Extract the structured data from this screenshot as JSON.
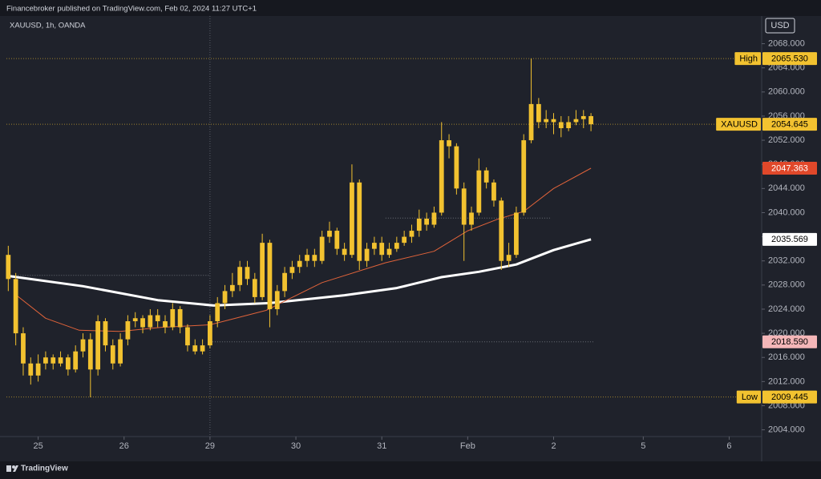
{
  "header": {
    "publisher": "Financebroker published on TradingView.com, Feb 02, 2024 11:27 UTC+1",
    "symbol": "XAUUSD, 1h, OANDA",
    "currency": "USD"
  },
  "footer": {
    "brand": "TradingView"
  },
  "chart_data": {
    "type": "candlestick",
    "color": "#f2c230",
    "x": [
      0,
      2,
      4,
      6,
      8,
      10,
      12,
      14,
      16,
      18,
      20,
      22,
      24,
      26,
      28,
      30,
      32,
      34,
      36,
      38,
      40,
      42,
      44,
      46,
      48,
      50,
      52,
      54,
      56,
      58,
      60,
      62,
      64,
      66,
      68,
      70,
      72,
      74,
      76,
      78,
      80,
      82,
      84,
      86,
      88,
      90,
      92,
      94,
      96,
      98,
      100,
      102,
      104,
      106,
      108,
      110,
      112,
      114,
      116,
      118,
      120,
      122,
      124,
      126,
      128,
      130,
      132,
      134,
      136,
      138,
      140,
      142,
      144,
      146,
      148,
      150,
      152,
      154,
      156
    ],
    "open": [
      2033,
      2029,
      2020,
      2015,
      2013,
      2015,
      2016,
      2015,
      2016,
      2014,
      2017,
      2019,
      2014,
      2022,
      2018,
      2015,
      2019,
      2022,
      2022.5,
      2021,
      2023,
      2022,
      2021,
      2024,
      2021,
      2018,
      2017,
      2018,
      2022,
      2025,
      2027,
      2028,
      2031,
      2029,
      2026,
      2035,
      2024,
      2027,
      2030,
      2031,
      2032,
      2033,
      2032,
      2036,
      2037,
      2034,
      2033,
      2045,
      2032,
      2034,
      2035,
      2033,
      2034,
      2035,
      2036,
      2037,
      2039,
      2038,
      2040,
      2052,
      2051,
      2044,
      2038,
      2040,
      2047,
      2045,
      2042,
      2032,
      2033,
      2040,
      2052,
      2058,
      2055,
      2055.5,
      2055,
      2054,
      2055,
      2055.5,
      2056
    ],
    "high": [
      2034.5,
      2030,
      2021,
      2016,
      2016.5,
      2017,
      2016.5,
      2017,
      2016.5,
      2018,
      2020,
      2020,
      2023,
      2022.5,
      2019,
      2020,
      2023,
      2023.5,
      2023,
      2024,
      2024,
      2023,
      2025,
      2024.5,
      2021.5,
      2019,
      2019,
      2023,
      2026,
      2028,
      2030,
      2032,
      2032,
      2030,
      2036.5,
      2035.5,
      2028,
      2031,
      2032,
      2033,
      2034,
      2034,
      2037,
      2038.5,
      2037.5,
      2035,
      2048,
      2045.5,
      2035,
      2036,
      2036,
      2035,
      2036,
      2037,
      2038,
      2040.5,
      2040,
      2041,
      2055,
      2053,
      2051.5,
      2045,
      2041,
      2049,
      2047.5,
      2045.5,
      2042.5,
      2035,
      2041,
      2053,
      2065.53,
      2059,
      2057,
      2056.5,
      2056,
      2056,
      2057,
      2057,
      2056.5
    ],
    "low": [
      2027,
      2018,
      2013,
      2011.5,
      2012,
      2014,
      2014,
      2014.5,
      2013,
      2013.5,
      2016,
      2009.4,
      2013,
      2017,
      2014,
      2014.5,
      2018,
      2021,
      2020,
      2020.5,
      2021,
      2020,
      2020.5,
      2020,
      2017,
      2016.5,
      2016.5,
      2017.5,
      2021,
      2024,
      2026,
      2027,
      2028,
      2025,
      2025.5,
      2021,
      2023,
      2026,
      2029,
      2030,
      2031,
      2031,
      2031.5,
      2035,
      2033,
      2032,
      2032.5,
      2030.5,
      2031,
      2033,
      2032,
      2032.5,
      2033.5,
      2034.5,
      2035,
      2036,
      2037,
      2037.5,
      2039.5,
      2049,
      2043,
      2032,
      2037,
      2039.5,
      2044,
      2041,
      2030.5,
      2031,
      2032.5,
      2039.5,
      2051.5,
      2054,
      2054,
      2053,
      2052.5,
      2053.5,
      2054.5,
      2054,
      2053.5
    ],
    "close": [
      2029,
      2020,
      2015,
      2013,
      2015,
      2016,
      2015,
      2016,
      2014,
      2017,
      2019,
      2014,
      2022,
      2018,
      2015,
      2019,
      2022,
      2022.5,
      2021,
      2023,
      2022,
      2021,
      2024,
      2021,
      2018,
      2017,
      2018,
      2022,
      2025,
      2027,
      2028,
      2031,
      2029,
      2026,
      2035,
      2024,
      2027,
      2030,
      2031,
      2032,
      2033,
      2032,
      2036,
      2037,
      2034,
      2033,
      2045,
      2032,
      2034,
      2035,
      2033,
      2034,
      2035,
      2036,
      2037,
      2039,
      2038,
      2040,
      2052,
      2051,
      2044,
      2038,
      2040,
      2047,
      2045,
      2042,
      2032,
      2033,
      2040,
      2052,
      2058,
      2055,
      2055.5,
      2055,
      2054,
      2055,
      2055.5,
      2056,
      2054.645
    ],
    "lines": [
      {
        "color": "#ffffff",
        "width": 3,
        "x": [
          0,
          20,
          40,
          55,
          70,
          90,
          104,
          116,
          126,
          136,
          146,
          156
        ],
        "values": [
          2029.5,
          2027.8,
          2025.5,
          2024.6,
          2025,
          2026.3,
          2027.5,
          2029.3,
          2030.2,
          2031.4,
          2033.8,
          2035.569
        ]
      },
      {
        "color": "#e0633a",
        "width": 1,
        "x": [
          2,
          10,
          19,
          30,
          41,
          54,
          69,
          84,
          101,
          114,
          123,
          131,
          138,
          146,
          156
        ],
        "values": [
          2026.4,
          2022.5,
          2020.5,
          2020.3,
          2021,
          2021.4,
          2023.8,
          2028.4,
          2031.7,
          2033.6,
          2037,
          2038.9,
          2040.2,
          2044,
          2047.363
        ]
      }
    ],
    "levels": [
      {
        "value": 2029.6,
        "x": [
          0,
          54
        ]
      },
      {
        "value": 2039.1,
        "x": [
          101,
          145
        ]
      },
      {
        "value": 2018.59,
        "x": [
          54,
          157
        ]
      }
    ],
    "vlines": [
      54
    ],
    "price_tags": [
      {
        "name": "High",
        "value": 2065.53,
        "label": "2065.530",
        "color": "#f2c230",
        "text_color": "#000000",
        "line": true
      },
      {
        "name": "XAUUSD",
        "value": 2054.645,
        "label": "2054.645",
        "color": "#f2c230",
        "text_color": "#000000",
        "line": true
      },
      {
        "value": 2047.363,
        "label": "2047.363",
        "color": "#e0482a",
        "text_color": "#ffffff"
      },
      {
        "value": 2035.569,
        "label": "2035.569",
        "color": "#ffffff",
        "text_color": "#000000"
      },
      {
        "value": 2018.59,
        "label": "2018.590",
        "color": "#f4b6b8",
        "text_color": "#000000"
      },
      {
        "name": "Low",
        "value": 2009.445,
        "label": "2009.445",
        "color": "#f2c230",
        "text_color": "#000000",
        "line": true
      }
    ],
    "xlim": [
      -0.5,
      201.7
    ],
    "xticks": [
      {
        "value": 8,
        "label": "25"
      },
      {
        "value": 31,
        "label": "26"
      },
      {
        "value": 54,
        "label": "29"
      },
      {
        "value": 77,
        "label": "30"
      },
      {
        "value": 100,
        "label": "31"
      },
      {
        "value": 123,
        "label": "Feb"
      },
      {
        "value": 146,
        "label": "2"
      },
      {
        "value": 170,
        "label": "5"
      },
      {
        "value": 193,
        "label": "6"
      }
    ],
    "ylim": [
      2002.885,
      2072.59
    ],
    "yticks": [
      {
        "value": 2004,
        "label": "2004.000"
      },
      {
        "value": 2008,
        "label": "2008.000"
      },
      {
        "value": 2012,
        "label": "2012.000"
      },
      {
        "value": 2016,
        "label": "2016.000"
      },
      {
        "value": 2020,
        "label": "2020.000"
      },
      {
        "value": 2024,
        "label": "2024.000"
      },
      {
        "value": 2028,
        "label": "2028.000"
      },
      {
        "value": 2032,
        "label": "2032.000"
      },
      {
        "value": 2036,
        "label": "2036.000"
      },
      {
        "value": 2040,
        "label": "2040.000"
      },
      {
        "value": 2044,
        "label": "2044.000"
      },
      {
        "value": 2048,
        "label": "2048.000"
      },
      {
        "value": 2052,
        "label": "2052.000"
      },
      {
        "value": 2056,
        "label": "2056.000"
      },
      {
        "value": 2060,
        "label": "2060.000"
      },
      {
        "value": 2064,
        "label": "2064.000"
      },
      {
        "value": 2068,
        "label": "2068.000"
      }
    ]
  }
}
